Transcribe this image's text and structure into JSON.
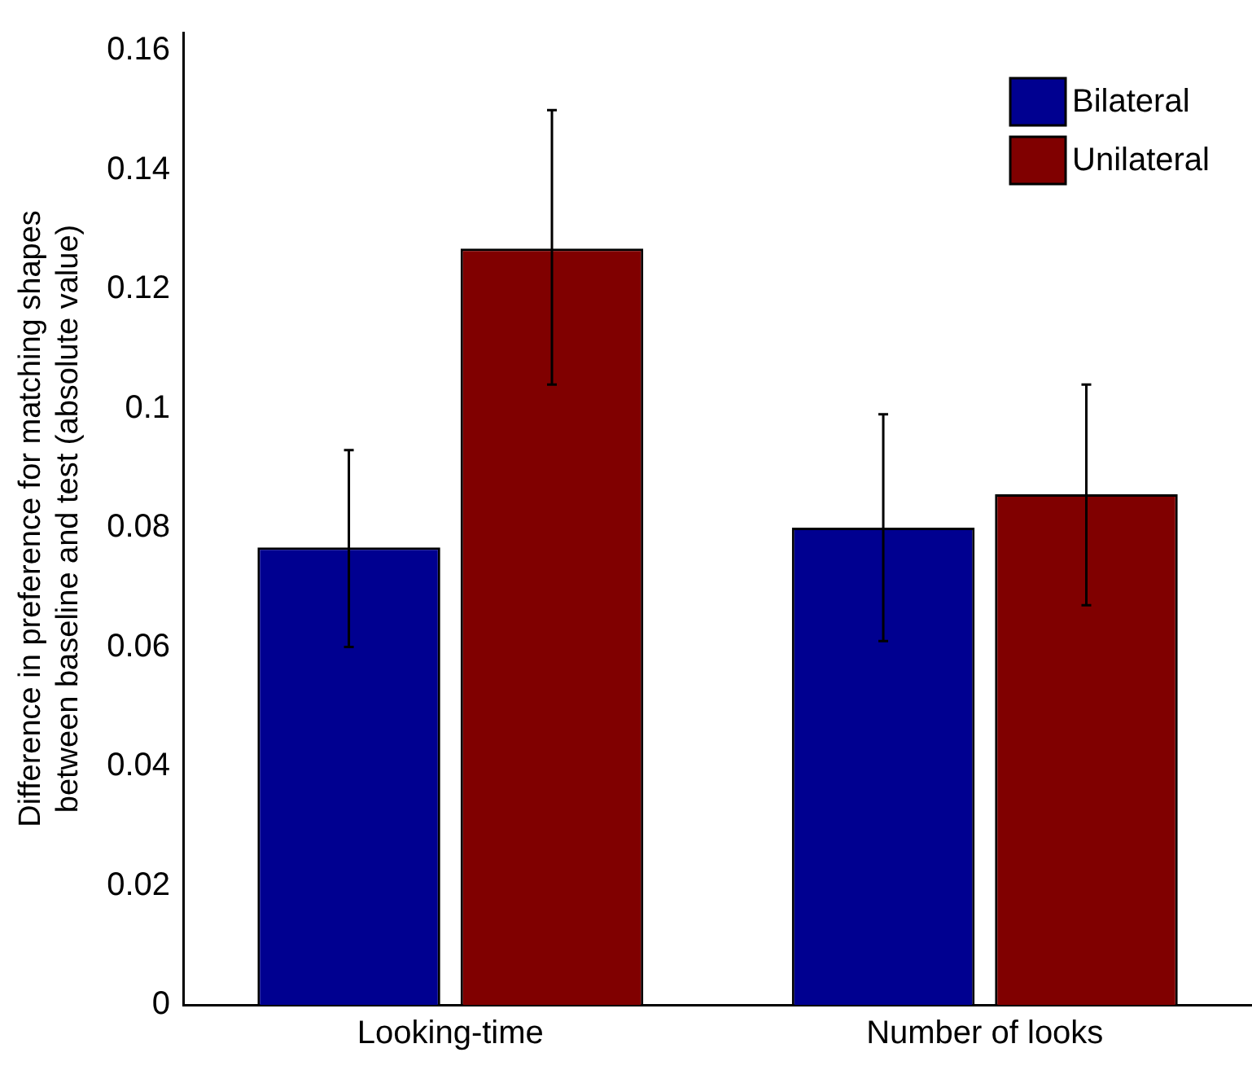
{
  "chart_data": {
    "type": "bar",
    "ylabel": "Difference in preference for matching shapes\nbetween baseline and test (absolute value)",
    "categories": [
      "Looking-time",
      "Number of looks"
    ],
    "series": [
      {
        "name": "Bilateral",
        "color": "#000090",
        "values": [
          0.0767,
          0.08
        ],
        "errors": [
          [
            0.06,
            0.093
          ],
          [
            0.061,
            0.099
          ]
        ]
      },
      {
        "name": "Unilateral",
        "color": "#800000",
        "values": [
          0.1268,
          0.0856
        ],
        "errors": [
          [
            0.104,
            0.15
          ],
          [
            0.067,
            0.104
          ]
        ]
      }
    ],
    "ylim": [
      0,
      0.163
    ],
    "yticks": [
      0,
      0.02,
      0.04,
      0.06,
      0.08,
      {
        "value": 0.1,
        "label": "0.1"
      },
      0.12,
      0.14,
      0.16
    ],
    "grid": false,
    "legend": "top right"
  }
}
